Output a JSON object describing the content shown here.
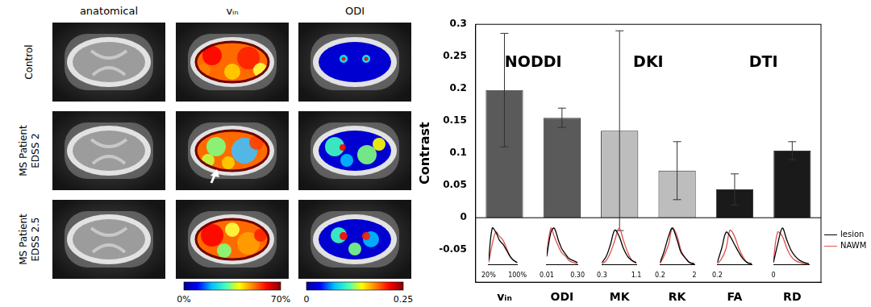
{
  "figure": {
    "columns": [
      "anatomical",
      "vᵢₙ",
      "ODI"
    ],
    "rows": [
      [
        "Control"
      ],
      [
        "MS Patient",
        "EDSS 2"
      ],
      [
        "MS Patient",
        "EDSS 2.5"
      ]
    ],
    "colorbars": [
      {
        "column": "vᵢₙ",
        "range": [
          0,
          70
        ],
        "ticks": [
          {
            "value": 0,
            "label": "0%"
          },
          {
            "value": 70,
            "label": "70%"
          }
        ]
      },
      {
        "column": "ODI",
        "range": [
          0,
          0.25
        ],
        "ticks": [
          0,
          0.25
        ]
      }
    ]
  },
  "chart_data": {
    "type": "bar",
    "y_label": "Contrast",
    "categories": [
      "vᵢₙ",
      "ODI",
      "MK",
      "RK",
      "FA",
      "RD"
    ],
    "values": [
      0.198,
      0.155,
      0.135,
      0.073,
      0.044,
      0.104
    ],
    "errors": [
      0.088,
      0.015,
      0.155,
      0.045,
      0.024,
      0.014
    ],
    "colors": [
      "#5a5a5a",
      "#5a5a5a",
      "#bdbdbd",
      "#bdbdbd",
      "#1a1a1a",
      "#1a1a1a"
    ],
    "ylim": [
      -0.1,
      0.3
    ],
    "yticks": [
      -0.05,
      0,
      0.05,
      0.1,
      0.15,
      0.2,
      0.25,
      0.3
    ],
    "grid": false,
    "annotations": [
      {
        "text": "NODDI",
        "categories": [
          "vᵢₙ",
          "ODI"
        ],
        "y": 0.24
      },
      {
        "text": "DKI",
        "categories": [
          "MK",
          "RK"
        ],
        "y": 0.24
      },
      {
        "text": "DTI",
        "categories": [
          "FA",
          "RD"
        ],
        "y": 0.24
      }
    ],
    "insets": {
      "type": "line",
      "legend": "lower right",
      "tick_labels": "x",
      "ylim": [
        0,
        1
      ],
      "series": [
        {
          "name": "lesion",
          "color": "#000000"
        },
        {
          "name": "NAWM",
          "color": "#e05050"
        }
      ],
      "panels": [
        {
          "category": "vᵢₙ",
          "xlim": [
            20,
            100
          ],
          "xticks": [
            {
              "value": 20,
              "label": "20%"
            },
            {
              "value": 100,
              "label": "100%"
            }
          ],
          "x": [
            20,
            30,
            40,
            50,
            60,
            70,
            80,
            90,
            100
          ],
          "values": {
            "lesion": [
              0.1,
              0.9,
              0.8,
              0.6,
              0.5,
              0.35,
              0.2,
              0.1,
              0.05
            ],
            "NAWM": [
              0.05,
              0.5,
              0.8,
              0.7,
              0.6,
              0.4,
              0.2,
              0.1,
              0.05
            ]
          }
        },
        {
          "category": "ODI",
          "xlim": [
            0.01,
            0.3
          ],
          "xticks": [
            {
              "value": 0.01,
              "label": "0.01"
            },
            {
              "value": 0.3,
              "label": "0.30"
            }
          ],
          "x": [
            0.01,
            0.05,
            0.08,
            0.12,
            0.15,
            0.19,
            0.22,
            0.26,
            0.3
          ],
          "values": {
            "lesion": [
              0.2,
              0.8,
              0.9,
              0.6,
              0.4,
              0.25,
              0.15,
              0.1,
              0.05
            ],
            "NAWM": [
              0.3,
              0.9,
              0.7,
              0.45,
              0.3,
              0.2,
              0.1,
              0.05,
              0.02
            ]
          }
        },
        {
          "category": "MK",
          "xlim": [
            0.3,
            1.1
          ],
          "xticks": [
            0.3,
            1.1
          ],
          "x": [
            0.3,
            0.4,
            0.5,
            0.6,
            0.7,
            0.8,
            0.9,
            1.0,
            1.1
          ],
          "values": {
            "lesion": [
              0.05,
              0.2,
              0.5,
              0.85,
              0.7,
              0.4,
              0.2,
              0.1,
              0.05
            ],
            "NAWM": [
              0.02,
              0.1,
              0.3,
              0.6,
              0.9,
              0.6,
              0.3,
              0.1,
              0.03
            ]
          }
        },
        {
          "category": "RK",
          "xlim": [
            0.2,
            2
          ],
          "xticks": [
            0.2,
            2
          ],
          "x": [
            0.2,
            0.4,
            0.65,
            0.85,
            1.1,
            1.3,
            1.55,
            1.75,
            2
          ],
          "values": {
            "lesion": [
              0.05,
              0.3,
              0.7,
              0.9,
              0.6,
              0.3,
              0.15,
              0.05,
              0.02
            ],
            "NAWM": [
              0.02,
              0.2,
              0.5,
              0.9,
              0.7,
              0.35,
              0.15,
              0.05,
              0.02
            ]
          }
        },
        {
          "category": "FA",
          "xlim": [
            0.2,
            0.9
          ],
          "xticks": [
            0.2
          ],
          "x": [
            0.2,
            0.29,
            0.38,
            0.46,
            0.55,
            0.64,
            0.72,
            0.81,
            0.9
          ],
          "values": {
            "lesion": [
              0.05,
              0.4,
              0.8,
              0.7,
              0.5,
              0.3,
              0.15,
              0.05,
              0.02
            ],
            "NAWM": [
              0.02,
              0.15,
              0.4,
              0.85,
              0.7,
              0.4,
              0.2,
              0.05,
              0.02
            ]
          }
        },
        {
          "category": "RD",
          "xlim": [
            0,
            1
          ],
          "xticks": [
            0
          ],
          "x": [
            0,
            0.12,
            0.25,
            0.38,
            0.5,
            0.62,
            0.75,
            0.88,
            1
          ],
          "values": {
            "lesion": [
              0.05,
              0.5,
              0.9,
              0.6,
              0.35,
              0.2,
              0.1,
              0.05,
              0.02
            ],
            "NAWM": [
              0.1,
              0.8,
              0.7,
              0.4,
              0.2,
              0.1,
              0.05,
              0.02,
              0.01
            ]
          }
        }
      ]
    }
  }
}
